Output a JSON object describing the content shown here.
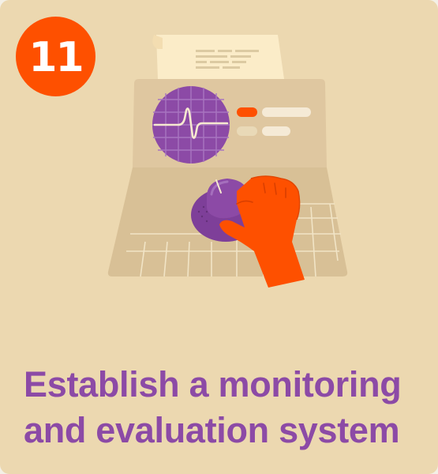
{
  "badge": {
    "number": "11",
    "color": "#fe5000"
  },
  "caption": {
    "line1": "Establish a monitoring",
    "line2": "and evaluation system"
  },
  "illustration": {
    "subject": "monitoring-machine-with-hand-turning-knob",
    "icons": [
      "paper-printout-icon",
      "oscilloscope-screen-icon",
      "indicator-lights-icon",
      "control-knob-icon",
      "hand-icon"
    ]
  },
  "colors": {
    "background": "#ecd8b0",
    "accent_orange": "#fe5000",
    "accent_purple": "#8c4aa6",
    "machine_body": "#dfc7a0",
    "paper": "#fbecc8"
  }
}
